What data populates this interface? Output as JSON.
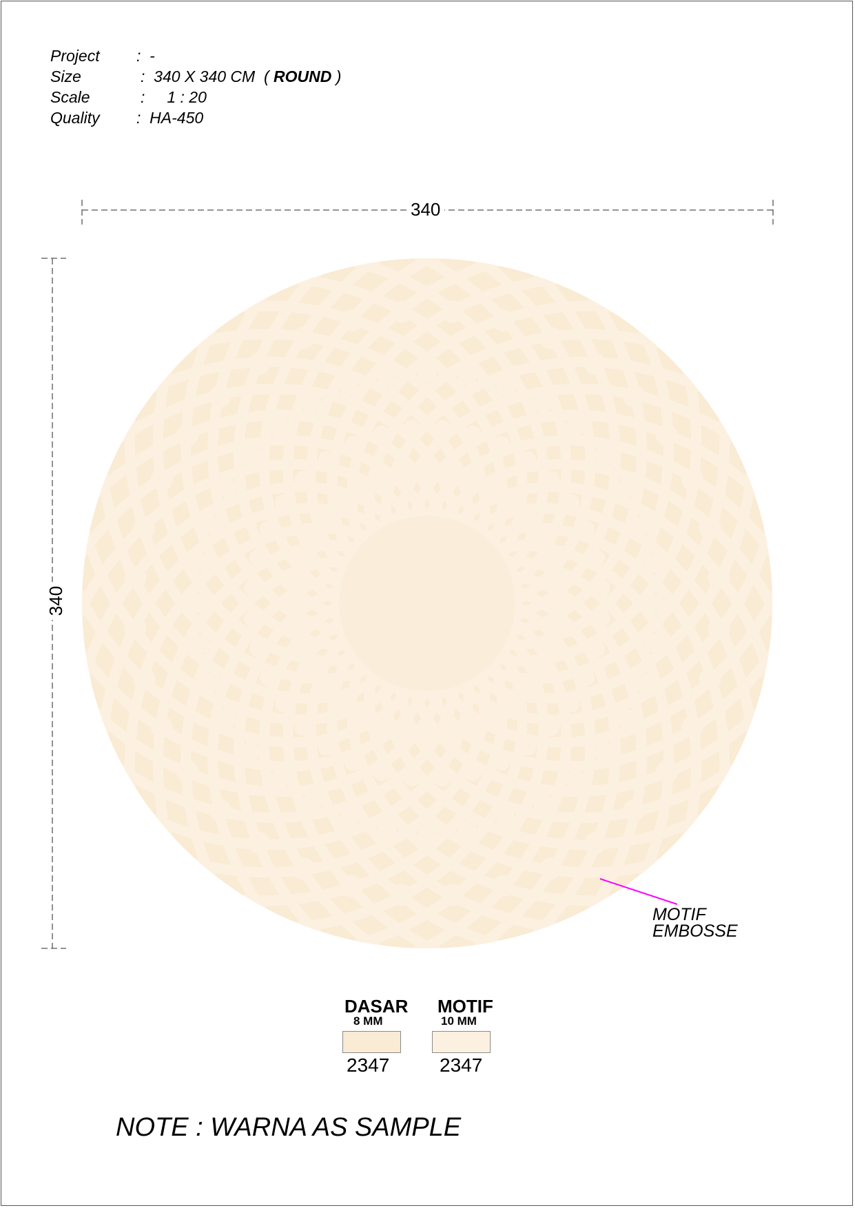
{
  "spec": {
    "project": {
      "label": "Project",
      "value": ":  -"
    },
    "size": {
      "label": "Size",
      "value_prefix": ":  340 X 340 CM  ( ",
      "value_bold": "ROUND",
      "value_suffix": " )"
    },
    "scale": {
      "label": "Scale",
      "value": ":     1 : 20"
    },
    "quality": {
      "label": "Quality",
      "value": ":  HA-450"
    }
  },
  "dimensions": {
    "width": "340",
    "height": "340"
  },
  "callout": {
    "line1": "MOTIF",
    "line2": "EMBOSSE",
    "leader_color": "#ff00ff"
  },
  "legend": [
    {
      "title": "DASAR",
      "thickness": "8 MM",
      "code": "2347",
      "color": "#f9ebd4"
    },
    {
      "title": "MOTIF",
      "thickness": "10 MM",
      "code": "2347",
      "color": "#fcf1e1"
    }
  ],
  "note": "NOTE : WARNA AS SAMPLE",
  "colors": {
    "base": "#f9ebd4",
    "motif": "#fcf1e1",
    "dim_line": "#555555"
  }
}
